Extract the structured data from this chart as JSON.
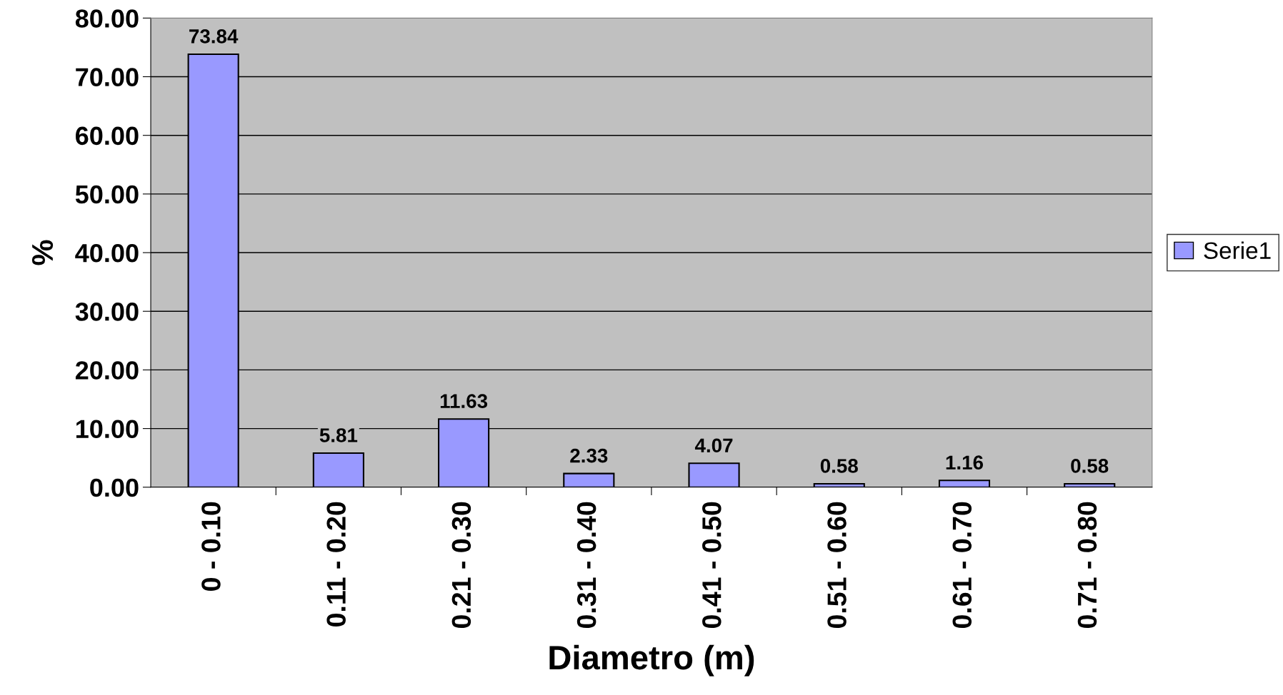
{
  "chart_data": {
    "type": "bar",
    "xlabel": "Diametro (m)",
    "ylabel": "%",
    "categories": [
      "0 - 0.10",
      "0.11 - 0.20",
      "0.21 - 0.30",
      "0.31 - 0.40",
      "0.41 - 0.50",
      "0.51 - 0.60",
      "0.61 - 0.70",
      "0.71 - 0.80"
    ],
    "series": [
      {
        "name": "Serie1",
        "color": "#9999ff",
        "values": [
          73.84,
          5.81,
          11.63,
          2.33,
          4.07,
          0.58,
          1.16,
          0.58
        ]
      }
    ],
    "ylim": [
      0,
      80
    ],
    "yticks": [
      {
        "value": 0,
        "label": "0.00"
      },
      {
        "value": 10,
        "label": "10.00"
      },
      {
        "value": 20,
        "label": "20.00"
      },
      {
        "value": 30,
        "label": "30.00"
      },
      {
        "value": 40,
        "label": "40.00"
      },
      {
        "value": 50,
        "label": "50.00"
      },
      {
        "value": 60,
        "label": "60.00"
      },
      {
        "value": 70,
        "label": "70.00"
      },
      {
        "value": 80,
        "label": "80.00"
      }
    ],
    "grid": "y",
    "legend": "right",
    "data_labels": true
  }
}
